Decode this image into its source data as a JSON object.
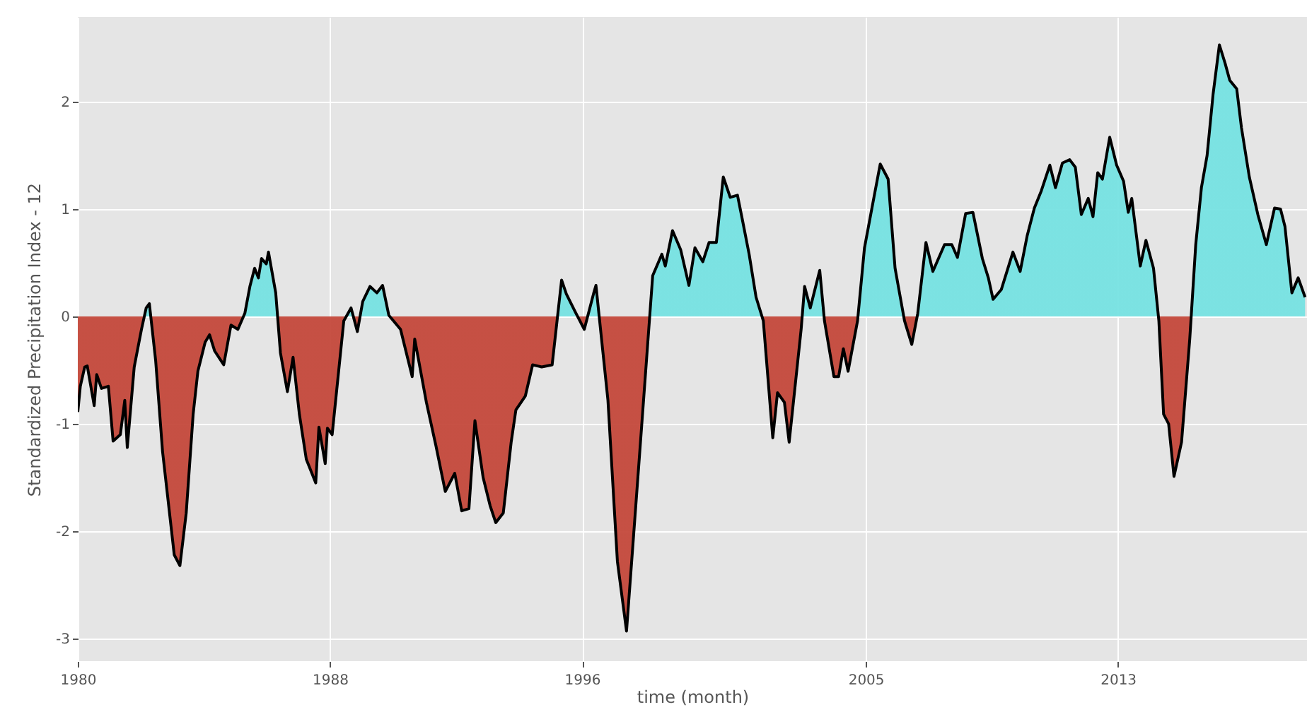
{
  "chart_data": {
    "type": "area",
    "xlabel": "time (month)",
    "ylabel": "Standardized Precipitation Index - 12",
    "x": [
      1980.0,
      1980.08,
      1980.22,
      1980.3,
      1980.52,
      1980.6,
      1980.75,
      1980.97,
      1981.12,
      1981.35,
      1981.49,
      1981.57,
      1981.79,
      1982.02,
      1982.17,
      1982.27,
      1982.47,
      1982.69,
      1982.91,
      1983.06,
      1983.24,
      1983.44,
      1983.66,
      1983.81,
      1984.04,
      1984.18,
      1984.34,
      1984.63,
      1984.86,
      1985.08,
      1985.3,
      1985.46,
      1985.61,
      1985.73,
      1985.83,
      1985.98,
      1986.05,
      1986.28,
      1986.43,
      1986.65,
      1986.83,
      1987.03,
      1987.25,
      1987.55,
      1987.65,
      1987.85,
      1987.92,
      1988.07,
      1988.44,
      1988.67,
      1988.87,
      1989.04,
      1989.27,
      1989.49,
      1989.67,
      1989.87,
      1990.24,
      1990.61,
      1990.69,
      1991.06,
      1991.36,
      1991.66,
      1991.96,
      1992.18,
      1992.41,
      1992.6,
      1992.86,
      1993.08,
      1993.26,
      1993.5,
      1993.75,
      1993.9,
      1994.2,
      1994.43,
      1994.72,
      1995.05,
      1995.35,
      1995.5,
      1995.77,
      1996.07,
      1996.37,
      1996.44,
      1996.82,
      1997.12,
      1997.41,
      1997.79,
      1998.24,
      1998.53,
      1998.64,
      1998.87,
      1999.13,
      1999.39,
      1999.58,
      1999.83,
      2000.03,
      2000.26,
      2000.48,
      2000.7,
      2000.93,
      2001.08,
      2001.3,
      2001.52,
      2001.75,
      2002.05,
      2002.2,
      2002.42,
      2002.57,
      2002.95,
      2003.06,
      2003.24,
      2003.54,
      2003.69,
      2003.99,
      2004.14,
      2004.29,
      2004.44,
      2004.74,
      2004.96,
      2005.26,
      2005.46,
      2005.71,
      2005.93,
      2006.23,
      2006.46,
      2006.65,
      2006.91,
      2007.13,
      2007.5,
      2007.73,
      2007.91,
      2008.17,
      2008.4,
      2008.7,
      2008.89,
      2009.04,
      2009.3,
      2009.67,
      2009.9,
      2010.12,
      2010.35,
      2010.57,
      2010.84,
      2011.02,
      2011.24,
      2011.47,
      2011.65,
      2011.84,
      2012.06,
      2012.21,
      2012.36,
      2012.51,
      2012.74,
      2012.96,
      2013.18,
      2013.33,
      2013.44,
      2013.71,
      2013.89,
      2014.13,
      2014.3,
      2014.45,
      2014.61,
      2014.78,
      2015.02,
      2015.28,
      2015.47,
      2015.65,
      2015.83,
      2016.02,
      2016.22,
      2016.4,
      2016.55,
      2016.77,
      2016.92,
      2017.17,
      2017.44,
      2017.71,
      2017.97,
      2018.16,
      2018.3,
      2018.52,
      2018.72,
      2018.94
    ],
    "values": [
      -0.89,
      -0.65,
      -0.47,
      -0.46,
      -0.83,
      -0.54,
      -0.67,
      -0.65,
      -1.16,
      -1.1,
      -0.78,
      -1.22,
      -0.47,
      -0.12,
      0.08,
      0.12,
      -0.41,
      -1.26,
      -1.83,
      -2.22,
      -2.32,
      -1.83,
      -0.91,
      -0.51,
      -0.24,
      -0.17,
      -0.32,
      -0.45,
      -0.08,
      -0.12,
      0.03,
      0.28,
      0.45,
      0.36,
      0.54,
      0.49,
      0.6,
      0.22,
      -0.34,
      -0.7,
      -0.38,
      -0.91,
      -1.33,
      -1.55,
      -1.03,
      -1.37,
      -1.04,
      -1.1,
      -0.04,
      0.08,
      -0.14,
      0.14,
      0.28,
      0.22,
      0.29,
      0.01,
      -0.12,
      -0.56,
      -0.21,
      -0.8,
      -1.2,
      -1.63,
      -1.46,
      -1.81,
      -1.79,
      -0.97,
      -1.5,
      -1.76,
      -1.92,
      -1.83,
      -1.17,
      -0.87,
      -0.74,
      -0.45,
      -0.47,
      -0.45,
      0.34,
      0.21,
      0.05,
      -0.12,
      0.22,
      0.29,
      -0.78,
      -2.28,
      -2.93,
      -1.42,
      0.38,
      0.58,
      0.47,
      0.8,
      0.62,
      0.29,
      0.64,
      0.51,
      0.69,
      0.69,
      1.3,
      1.11,
      1.13,
      0.91,
      0.58,
      0.18,
      -0.04,
      -1.13,
      -0.71,
      -0.8,
      -1.17,
      -0.12,
      0.28,
      0.08,
      0.43,
      -0.04,
      -0.56,
      -0.56,
      -0.3,
      -0.51,
      -0.04,
      0.64,
      1.11,
      1.42,
      1.28,
      0.45,
      -0.04,
      -0.26,
      0.03,
      0.69,
      0.42,
      0.67,
      0.67,
      0.55,
      0.96,
      0.97,
      0.54,
      0.36,
      0.16,
      0.25,
      0.6,
      0.42,
      0.75,
      1.01,
      1.17,
      1.41,
      1.2,
      1.43,
      1.46,
      1.39,
      0.95,
      1.1,
      0.93,
      1.34,
      1.28,
      1.67,
      1.41,
      1.26,
      0.97,
      1.1,
      0.47,
      0.71,
      0.45,
      -0.04,
      -0.91,
      -1.0,
      -1.49,
      -1.17,
      -0.21,
      0.67,
      1.2,
      1.5,
      2.07,
      2.53,
      2.36,
      2.2,
      2.12,
      1.76,
      1.3,
      0.95,
      0.67,
      1.01,
      1.0,
      0.84,
      0.22,
      0.36,
      0.18
    ],
    "color": "#000000",
    "colors": [
      "#c4483b",
      "#c4483b",
      "#c4483b",
      "#c4483b",
      "#c4483b",
      "#c4483b",
      "#c4483b",
      "#c4483b",
      "#c4483b",
      "#c4483b",
      "#c4483b",
      "#c4483b",
      "#c4483b",
      "#c4483b",
      "#76e2e2",
      "#76e2e2",
      "#c4483b",
      "#c4483b",
      "#c4483b",
      "#c4483b",
      "#c4483b",
      "#c4483b",
      "#c4483b",
      "#c4483b",
      "#c4483b",
      "#c4483b",
      "#c4483b",
      "#c4483b",
      "#c4483b",
      "#c4483b",
      "#76e2e2",
      "#76e2e2",
      "#76e2e2",
      "#76e2e2",
      "#76e2e2",
      "#76e2e2",
      "#76e2e2",
      "#76e2e2",
      "#c4483b",
      "#c4483b",
      "#c4483b",
      "#c4483b",
      "#c4483b",
      "#c4483b",
      "#c4483b",
      "#c4483b",
      "#c4483b",
      "#c4483b",
      "#c4483b",
      "#76e2e2",
      "#c4483b",
      "#76e2e2",
      "#76e2e2",
      "#76e2e2",
      "#76e2e2",
      "#76e2e2",
      "#c4483b",
      "#c4483b",
      "#c4483b",
      "#c4483b",
      "#c4483b",
      "#c4483b",
      "#c4483b",
      "#c4483b",
      "#c4483b",
      "#c4483b",
      "#c4483b",
      "#c4483b",
      "#c4483b",
      "#c4483b",
      "#c4483b",
      "#c4483b",
      "#c4483b",
      "#c4483b",
      "#c4483b",
      "#c4483b",
      "#76e2e2",
      "#76e2e2",
      "#76e2e2",
      "#c4483b",
      "#76e2e2",
      "#76e2e2",
      "#c4483b",
      "#c4483b",
      "#c4483b",
      "#c4483b",
      "#76e2e2",
      "#76e2e2",
      "#76e2e2",
      "#76e2e2",
      "#76e2e2",
      "#76e2e2",
      "#76e2e2",
      "#76e2e2",
      "#76e2e2",
      "#76e2e2",
      "#76e2e2",
      "#76e2e2",
      "#76e2e2",
      "#76e2e2",
      "#76e2e2",
      "#76e2e2",
      "#c4483b",
      "#c4483b",
      "#c4483b",
      "#c4483b",
      "#c4483b",
      "#c4483b",
      "#76e2e2",
      "#76e2e2",
      "#76e2e2",
      "#c4483b",
      "#c4483b",
      "#c4483b",
      "#c4483b",
      "#c4483b",
      "#c4483b",
      "#76e2e2",
      "#76e2e2",
      "#76e2e2",
      "#76e2e2",
      "#76e2e2",
      "#c4483b",
      "#c4483b",
      "#76e2e2",
      "#76e2e2",
      "#76e2e2",
      "#76e2e2",
      "#76e2e2",
      "#76e2e2",
      "#76e2e2",
      "#76e2e2",
      "#76e2e2",
      "#76e2e2",
      "#76e2e2",
      "#76e2e2",
      "#76e2e2",
      "#76e2e2",
      "#76e2e2",
      "#76e2e2",
      "#76e2e2",
      "#76e2e2",
      "#76e2e2",
      "#76e2e2",
      "#76e2e2",
      "#76e2e2",
      "#76e2e2",
      "#76e2e2",
      "#76e2e2",
      "#76e2e2",
      "#76e2e2",
      "#76e2e2",
      "#76e2e2",
      "#76e2e2",
      "#76e2e2",
      "#76e2e2",
      "#76e2e2",
      "#76e2e2",
      "#76e2e2",
      "#c4483b",
      "#c4483b",
      "#c4483b",
      "#c4483b",
      "#c4483b",
      "#c4483b",
      "#76e2e2",
      "#76e2e2",
      "#76e2e2",
      "#76e2e2",
      "#76e2e2",
      "#76e2e2",
      "#76e2e2",
      "#76e2e2",
      "#76e2e2",
      "#76e2e2",
      "#76e2e2",
      "#76e2e2",
      "#76e2e2",
      "#76e2e2",
      "#76e2e2",
      "#76e2e2",
      "#76e2e2",
      "#76e2e2"
    ],
    "xlim": [
      1980,
      2019
    ],
    "xticks": [
      1980,
      1988,
      1996,
      2005,
      2013
    ],
    "ylim": [
      -3.21,
      2.79
    ],
    "yticks": [
      -3,
      -2,
      -1,
      0,
      1,
      2
    ],
    "grid": true
  }
}
